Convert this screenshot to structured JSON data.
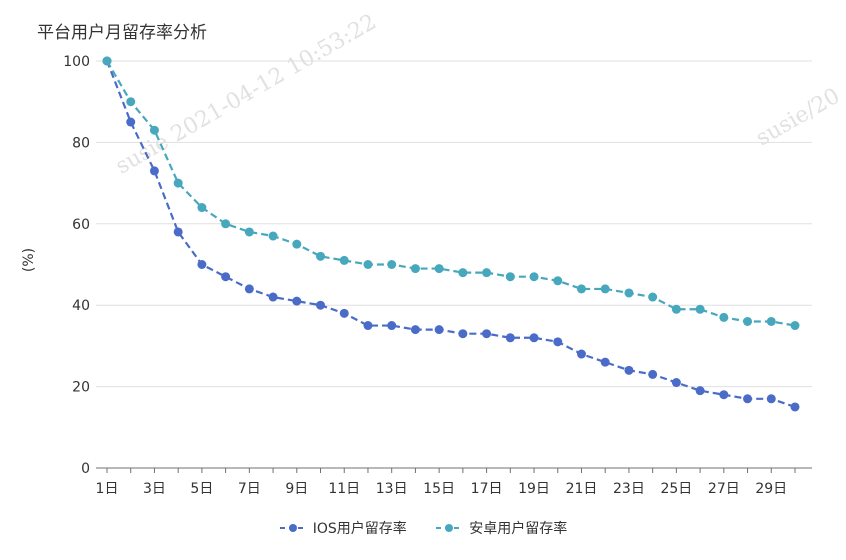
{
  "chart_data": {
    "type": "line",
    "title": "平台用户月留存率分析",
    "ylabel": "(%)",
    "xlabel": "",
    "ylim": [
      0,
      100
    ],
    "yticks": [
      0,
      20,
      40,
      60,
      80,
      100
    ],
    "x": [
      "1日",
      "2日",
      "3日",
      "4日",
      "5日",
      "6日",
      "7日",
      "8日",
      "9日",
      "10日",
      "11日",
      "12日",
      "13日",
      "14日",
      "15日",
      "16日",
      "17日",
      "18日",
      "19日",
      "20日",
      "21日",
      "22日",
      "23日",
      "24日",
      "25日",
      "26日",
      "27日",
      "28日",
      "29日",
      "30日"
    ],
    "xtick_labels": [
      "1日",
      "3日",
      "5日",
      "7日",
      "9日",
      "11日",
      "13日",
      "15日",
      "17日",
      "19日",
      "21日",
      "23日",
      "25日",
      "27日",
      "29日"
    ],
    "series": [
      {
        "name": "IOS用户留存率",
        "color": "#4a6cc8",
        "values": [
          100,
          85,
          73,
          58,
          50,
          47,
          44,
          42,
          41,
          40,
          38,
          35,
          35,
          34,
          34,
          33,
          33,
          32,
          32,
          31,
          28,
          26,
          24,
          23,
          21,
          19,
          18,
          17,
          17,
          15
        ]
      },
      {
        "name": "安卓用户留存率",
        "color": "#47a8bd",
        "values": [
          100,
          90,
          83,
          70,
          64,
          60,
          58,
          57,
          55,
          52,
          51,
          50,
          50,
          49,
          49,
          48,
          48,
          47,
          47,
          46,
          44,
          44,
          43,
          42,
          39,
          39,
          37,
          36,
          36,
          35
        ]
      }
    ],
    "grid": true,
    "legend_position": "bottom-center"
  },
  "watermark": {
    "text_left": "susie 2021-04-12 10:53:22",
    "text_right": "susie/20"
  }
}
